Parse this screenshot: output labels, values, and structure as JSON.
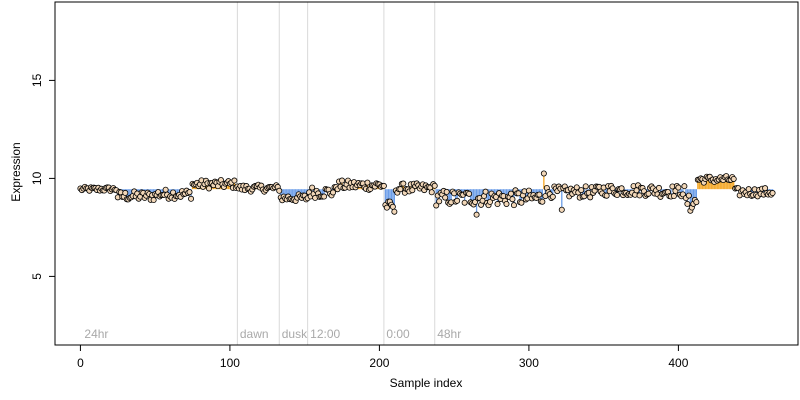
{
  "chart_data": {
    "type": "scatter",
    "title": "",
    "xlabel": "Sample index",
    "ylabel": "Expression",
    "xlim": [
      -17,
      480
    ],
    "ylim": [
      1.5,
      19
    ],
    "x_ticks": [
      0,
      100,
      200,
      300,
      400
    ],
    "y_ticks": [
      5,
      10,
      15
    ],
    "x_tick_labels": [
      "0",
      "100",
      "200",
      "300",
      "400"
    ],
    "y_tick_labels": [
      "5",
      "10",
      "15"
    ],
    "baseline": 9.45,
    "grid": false,
    "legend": "none",
    "colors": {
      "point_fill": "#f2d7b8",
      "point_stroke": "#000000",
      "above_baseline": "#f5a623",
      "below_baseline": "#6b9de8",
      "vline": "#d9d9d9",
      "annotation": "#a9a9a9"
    },
    "annotations": [
      {
        "x": 2,
        "label": "24hr"
      },
      {
        "x": 106,
        "label": "dawn"
      },
      {
        "x": 134,
        "label": "dusk"
      },
      {
        "x": 153,
        "label": "12:00"
      },
      {
        "x": 204,
        "label": "0:00"
      },
      {
        "x": 238,
        "label": "48hr"
      }
    ],
    "vlines": [
      105,
      133,
      152,
      203,
      237
    ],
    "segments": [
      {
        "x0": 0,
        "x1": 24,
        "center": 9.45,
        "amp": 0.12
      },
      {
        "x0": 25,
        "x1": 50,
        "center": 9.1,
        "amp": 0.25
      },
      {
        "x0": 51,
        "x1": 74,
        "center": 9.2,
        "amp": 0.25
      },
      {
        "x0": 75,
        "x1": 105,
        "center": 9.7,
        "amp": 0.22
      },
      {
        "x0": 106,
        "x1": 133,
        "center": 9.5,
        "amp": 0.18
      },
      {
        "x0": 134,
        "x1": 152,
        "center": 9.0,
        "amp": 0.2
      },
      {
        "x0": 153,
        "x1": 170,
        "center": 9.3,
        "amp": 0.3
      },
      {
        "x0": 171,
        "x1": 203,
        "center": 9.65,
        "amp": 0.25
      },
      {
        "x0": 204,
        "x1": 210,
        "center": 8.6,
        "amp": 0.25
      },
      {
        "x0": 211,
        "x1": 237,
        "center": 9.5,
        "amp": 0.25
      },
      {
        "x0": 238,
        "x1": 310,
        "center": 9.0,
        "amp": 0.4
      },
      {
        "x0": 311,
        "x1": 345,
        "center": 9.3,
        "amp": 0.3
      },
      {
        "x0": 346,
        "x1": 385,
        "center": 9.4,
        "amp": 0.3
      },
      {
        "x0": 386,
        "x1": 404,
        "center": 9.35,
        "amp": 0.3
      },
      {
        "x0": 405,
        "x1": 412,
        "center": 8.8,
        "amp": 0.35
      },
      {
        "x0": 413,
        "x1": 437,
        "center": 9.95,
        "amp": 0.18
      },
      {
        "x0": 438,
        "x1": 463,
        "center": 9.3,
        "amp": 0.22
      }
    ],
    "outliers": [
      {
        "x": 310,
        "y": 10.25
      },
      {
        "x": 408,
        "y": 8.35
      },
      {
        "x": 265,
        "y": 8.15
      },
      {
        "x": 322,
        "y": 8.4
      },
      {
        "x": 210,
        "y": 8.3
      }
    ]
  }
}
